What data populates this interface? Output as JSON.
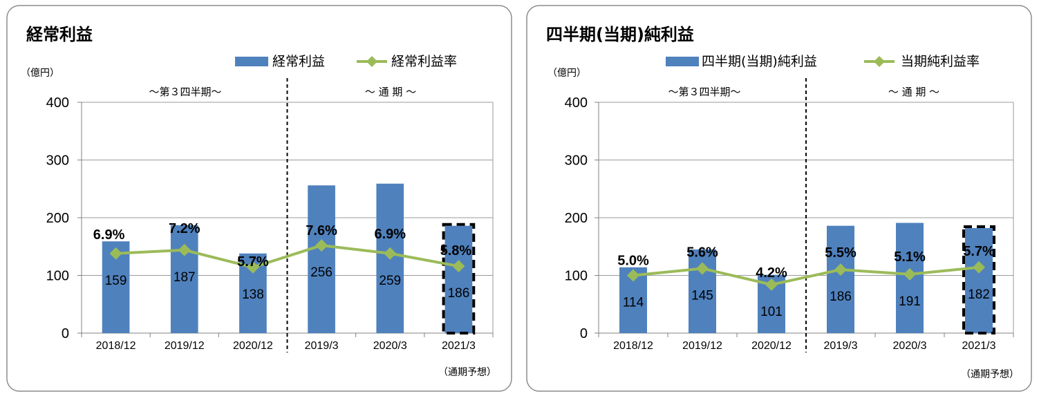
{
  "chart_data": [
    {
      "type": "bar",
      "title": "経常利益",
      "ylabel": "（億円）",
      "ylim": [
        0,
        400
      ],
      "yticks": [
        "0",
        "100",
        "200",
        "300",
        "400"
      ],
      "grid": true,
      "legend_position": "top-right",
      "categories": [
        "2018/12",
        "2019/12",
        "2020/12",
        "2019/3",
        "2020/3",
        "2021/3"
      ],
      "period_labels": [
        "～第３四半期～",
        "～ 通 期 ～"
      ],
      "note": "（通期予想）",
      "series": [
        {
          "name": "経常利益",
          "kind": "bar",
          "color": "#4f81bd",
          "values": [
            159,
            187,
            138,
            256,
            259,
            186
          ]
        },
        {
          "name": "経常利益率",
          "kind": "line",
          "color": "#9bbb59",
          "values": [
            6.9,
            7.2,
            5.7,
            7.6,
            6.9,
            5.8
          ],
          "unit": "%"
        }
      ],
      "bar_labels": [
        "159",
        "187",
        "138",
        "256",
        "259",
        "186"
      ],
      "rate_labels": [
        "6.9%",
        "7.2%",
        "5.7%",
        "7.6%",
        "6.9%",
        "5.8%"
      ],
      "rate_axis_note": "rate markers drawn at value×20 on the 億円 axis"
    },
    {
      "type": "bar",
      "title": "四半期(当期)純利益",
      "ylabel": "（億円）",
      "ylim": [
        0,
        400
      ],
      "yticks": [
        "0",
        "100",
        "200",
        "300",
        "400"
      ],
      "grid": true,
      "legend_position": "top-right",
      "categories": [
        "2018/12",
        "2019/12",
        "2020/12",
        "2019/3",
        "2020/3",
        "2021/3"
      ],
      "period_labels": [
        "～第３四半期～",
        "～ 通 期 ～"
      ],
      "note": "（通期予想）",
      "series": [
        {
          "name": "四半期(当期)純利益",
          "kind": "bar",
          "color": "#4f81bd",
          "values": [
            114,
            145,
            101,
            186,
            191,
            182
          ]
        },
        {
          "name": "当期純利益率",
          "kind": "line",
          "color": "#9bbb59",
          "values": [
            5.0,
            5.6,
            4.2,
            5.5,
            5.1,
            5.7
          ],
          "unit": "%"
        }
      ],
      "bar_labels": [
        "114",
        "145",
        "101",
        "186",
        "191",
        "182"
      ],
      "rate_labels": [
        "5.0%",
        "5.6%",
        "4.2%",
        "5.5%",
        "5.1%",
        "5.7%"
      ]
    }
  ]
}
